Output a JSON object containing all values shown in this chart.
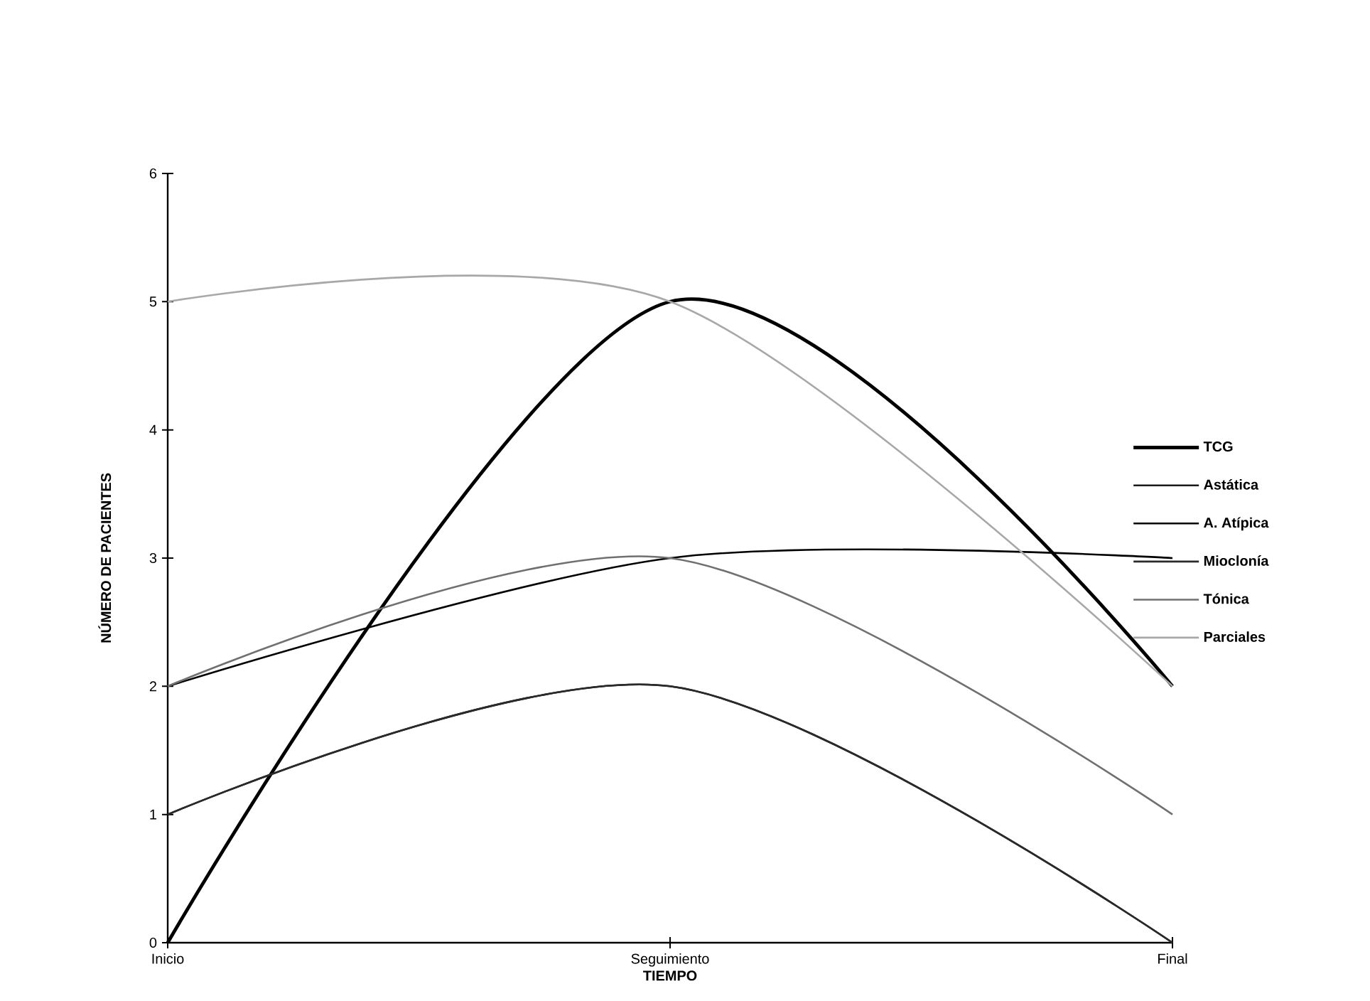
{
  "chart_data": {
    "type": "line",
    "xlabel": "TIEMPO",
    "ylabel": "NÚMERO DE PACIENTES",
    "categories": [
      "Inicio",
      "Seguimiento",
      "Final"
    ],
    "series": [
      {
        "name": "TCG",
        "color": "#000000",
        "values": [
          0,
          5,
          2
        ]
      },
      {
        "name": "Astática",
        "color": "#1a1a1a",
        "values": [
          1,
          2,
          0
        ]
      },
      {
        "name": "A. Atípica",
        "color": "#000000",
        "values": [
          2,
          3,
          3
        ]
      },
      {
        "name": "Mioclonía",
        "color": "#2a2a2a",
        "values": [
          1,
          2,
          0
        ]
      },
      {
        "name": "Tónica",
        "color": "#707070",
        "values": [
          2,
          3,
          1
        ]
      },
      {
        "name": "Parciales",
        "color": "#a8a8a8",
        "values": [
          5,
          5,
          2
        ]
      }
    ],
    "ylim": [
      0,
      6
    ],
    "yticks": [
      0,
      1,
      2,
      3,
      4,
      5,
      6
    ],
    "legend": "right",
    "grid": false,
    "marker": "none",
    "line_style": "solid"
  }
}
